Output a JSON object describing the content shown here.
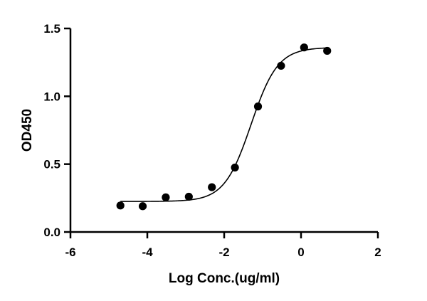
{
  "chart_data": {
    "type": "scatter",
    "title": "",
    "xlabel": "Log Conc.(ug/ml)",
    "ylabel": "OD450",
    "xlim": [
      -6,
      2
    ],
    "ylim": [
      0,
      1.5
    ],
    "x_ticks": [
      -6,
      -4,
      -2,
      0,
      2
    ],
    "x_tick_labels": [
      "-6",
      "-4",
      "-2",
      "0",
      "2"
    ],
    "y_ticks": [
      0,
      0.5,
      1.0,
      1.5
    ],
    "y_tick_labels": [
      "0.0",
      "0.5",
      "1.0",
      "1.5"
    ],
    "grid": false,
    "legend": "none",
    "point_color": "#000000",
    "series": [
      {
        "x": [
          -4.7,
          -4.12,
          -3.52,
          -2.92,
          -2.32,
          -1.72,
          -1.12,
          -0.52,
          0.08,
          0.68
        ],
        "y": [
          0.195,
          0.19,
          0.255,
          0.26,
          0.33,
          0.475,
          0.925,
          1.225,
          1.36,
          1.335
        ]
      }
    ],
    "fit_curve": {
      "model": "4PL",
      "bottom": 0.225,
      "top": 1.36,
      "log_ec50": -1.3,
      "hill_slope": 1.25,
      "x_range": [
        -4.7,
        0.68
      ]
    }
  }
}
